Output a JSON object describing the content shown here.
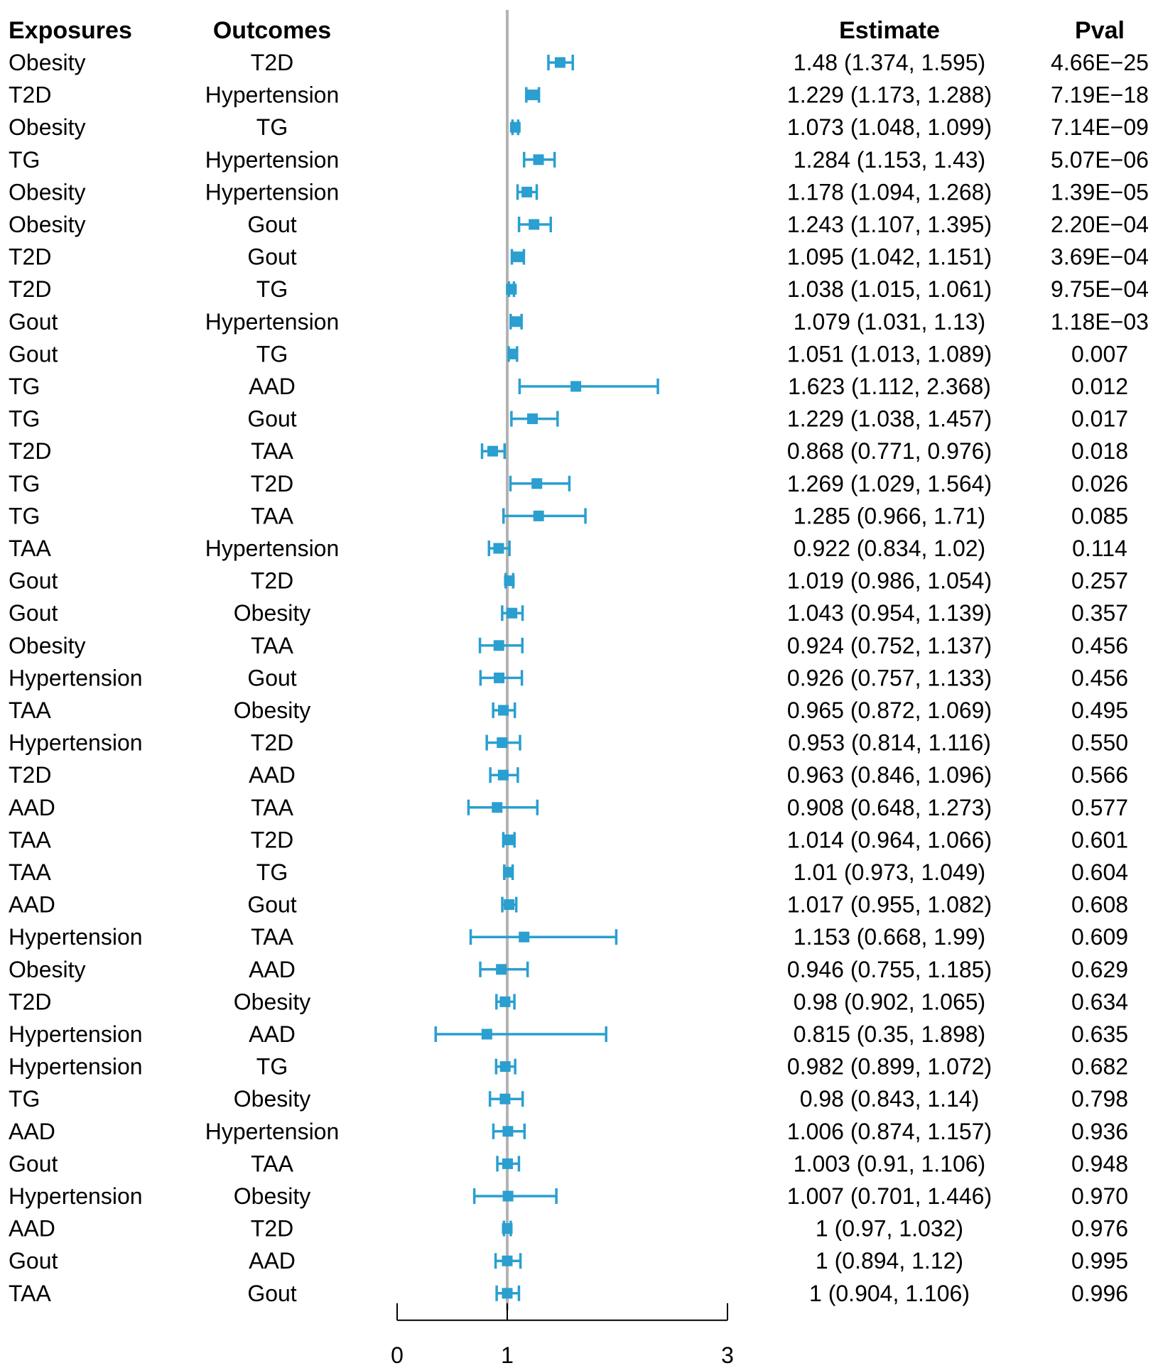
{
  "chart_data": {
    "type": "forest",
    "headers": {
      "exposures": "Exposures",
      "outcomes": "Outcomes",
      "estimate": "Estimate",
      "pval": "Pval"
    },
    "rows": [
      {
        "exposure": "Obesity",
        "outcome": "T2D",
        "or": 1.48,
        "lo": 1.374,
        "hi": 1.595,
        "estimate": "1.48 (1.374, 1.595)",
        "pval": "4.66E−25"
      },
      {
        "exposure": "T2D",
        "outcome": "Hypertension",
        "or": 1.229,
        "lo": 1.173,
        "hi": 1.288,
        "estimate": "1.229 (1.173, 1.288)",
        "pval": "7.19E−18"
      },
      {
        "exposure": "Obesity",
        "outcome": "TG",
        "or": 1.073,
        "lo": 1.048,
        "hi": 1.099,
        "estimate": "1.073 (1.048, 1.099)",
        "pval": "7.14E−09"
      },
      {
        "exposure": "TG",
        "outcome": "Hypertension",
        "or": 1.284,
        "lo": 1.153,
        "hi": 1.43,
        "estimate": "1.284 (1.153, 1.43)",
        "pval": "5.07E−06"
      },
      {
        "exposure": "Obesity",
        "outcome": "Hypertension",
        "or": 1.178,
        "lo": 1.094,
        "hi": 1.268,
        "estimate": "1.178 (1.094, 1.268)",
        "pval": "1.39E−05"
      },
      {
        "exposure": "Obesity",
        "outcome": "Gout",
        "or": 1.243,
        "lo": 1.107,
        "hi": 1.395,
        "estimate": "1.243 (1.107, 1.395)",
        "pval": "2.20E−04"
      },
      {
        "exposure": "T2D",
        "outcome": "Gout",
        "or": 1.095,
        "lo": 1.042,
        "hi": 1.151,
        "estimate": "1.095 (1.042, 1.151)",
        "pval": "3.69E−04"
      },
      {
        "exposure": "T2D",
        "outcome": "TG",
        "or": 1.038,
        "lo": 1.015,
        "hi": 1.061,
        "estimate": "1.038 (1.015, 1.061)",
        "pval": "9.75E−04"
      },
      {
        "exposure": "Gout",
        "outcome": "Hypertension",
        "or": 1.079,
        "lo": 1.031,
        "hi": 1.13,
        "estimate": "1.079 (1.031, 1.13)",
        "pval": "1.18E−03"
      },
      {
        "exposure": "Gout",
        "outcome": "TG",
        "or": 1.051,
        "lo": 1.013,
        "hi": 1.089,
        "estimate": "1.051 (1.013, 1.089)",
        "pval": "0.007"
      },
      {
        "exposure": "TG",
        "outcome": "AAD",
        "or": 1.623,
        "lo": 1.112,
        "hi": 2.368,
        "estimate": "1.623 (1.112, 2.368)",
        "pval": "0.012"
      },
      {
        "exposure": "TG",
        "outcome": "Gout",
        "or": 1.229,
        "lo": 1.038,
        "hi": 1.457,
        "estimate": "1.229 (1.038, 1.457)",
        "pval": "0.017"
      },
      {
        "exposure": "T2D",
        "outcome": "TAA",
        "or": 0.868,
        "lo": 0.771,
        "hi": 0.976,
        "estimate": "0.868 (0.771, 0.976)",
        "pval": "0.018"
      },
      {
        "exposure": "TG",
        "outcome": "T2D",
        "or": 1.269,
        "lo": 1.029,
        "hi": 1.564,
        "estimate": "1.269 (1.029, 1.564)",
        "pval": "0.026"
      },
      {
        "exposure": "TG",
        "outcome": "TAA",
        "or": 1.285,
        "lo": 0.966,
        "hi": 1.71,
        "estimate": "1.285 (0.966, 1.71)",
        "pval": "0.085"
      },
      {
        "exposure": "TAA",
        "outcome": "Hypertension",
        "or": 0.922,
        "lo": 0.834,
        "hi": 1.02,
        "estimate": "0.922 (0.834, 1.02)",
        "pval": "0.114"
      },
      {
        "exposure": "Gout",
        "outcome": "T2D",
        "or": 1.019,
        "lo": 0.986,
        "hi": 1.054,
        "estimate": "1.019 (0.986, 1.054)",
        "pval": "0.257"
      },
      {
        "exposure": "Gout",
        "outcome": "Obesity",
        "or": 1.043,
        "lo": 0.954,
        "hi": 1.139,
        "estimate": "1.043 (0.954, 1.139)",
        "pval": "0.357"
      },
      {
        "exposure": "Obesity",
        "outcome": "TAA",
        "or": 0.924,
        "lo": 0.752,
        "hi": 1.137,
        "estimate": "0.924 (0.752, 1.137)",
        "pval": "0.456"
      },
      {
        "exposure": "Hypertension",
        "outcome": "Gout",
        "or": 0.926,
        "lo": 0.757,
        "hi": 1.133,
        "estimate": "0.926 (0.757, 1.133)",
        "pval": "0.456"
      },
      {
        "exposure": "TAA",
        "outcome": "Obesity",
        "or": 0.965,
        "lo": 0.872,
        "hi": 1.069,
        "estimate": "0.965 (0.872, 1.069)",
        "pval": "0.495"
      },
      {
        "exposure": "Hypertension",
        "outcome": "T2D",
        "or": 0.953,
        "lo": 0.814,
        "hi": 1.116,
        "estimate": "0.953 (0.814, 1.116)",
        "pval": "0.550"
      },
      {
        "exposure": "T2D",
        "outcome": "AAD",
        "or": 0.963,
        "lo": 0.846,
        "hi": 1.096,
        "estimate": "0.963 (0.846, 1.096)",
        "pval": "0.566"
      },
      {
        "exposure": "AAD",
        "outcome": "TAA",
        "or": 0.908,
        "lo": 0.648,
        "hi": 1.273,
        "estimate": "0.908 (0.648, 1.273)",
        "pval": "0.577"
      },
      {
        "exposure": "TAA",
        "outcome": "T2D",
        "or": 1.014,
        "lo": 0.964,
        "hi": 1.066,
        "estimate": "1.014 (0.964, 1.066)",
        "pval": "0.601"
      },
      {
        "exposure": "TAA",
        "outcome": "TG",
        "or": 1.01,
        "lo": 0.973,
        "hi": 1.049,
        "estimate": "1.01 (0.973, 1.049)",
        "pval": "0.604"
      },
      {
        "exposure": "AAD",
        "outcome": "Gout",
        "or": 1.017,
        "lo": 0.955,
        "hi": 1.082,
        "estimate": "1.017 (0.955, 1.082)",
        "pval": "0.608"
      },
      {
        "exposure": "Hypertension",
        "outcome": "TAA",
        "or": 1.153,
        "lo": 0.668,
        "hi": 1.99,
        "estimate": "1.153 (0.668, 1.99)",
        "pval": "0.609"
      },
      {
        "exposure": "Obesity",
        "outcome": "AAD",
        "or": 0.946,
        "lo": 0.755,
        "hi": 1.185,
        "estimate": "0.946 (0.755, 1.185)",
        "pval": "0.629"
      },
      {
        "exposure": "T2D",
        "outcome": "Obesity",
        "or": 0.98,
        "lo": 0.902,
        "hi": 1.065,
        "estimate": "0.98 (0.902, 1.065)",
        "pval": "0.634"
      },
      {
        "exposure": "Hypertension",
        "outcome": "AAD",
        "or": 0.815,
        "lo": 0.35,
        "hi": 1.898,
        "estimate": "0.815 (0.35, 1.898)",
        "pval": "0.635"
      },
      {
        "exposure": "Hypertension",
        "outcome": "TG",
        "or": 0.982,
        "lo": 0.899,
        "hi": 1.072,
        "estimate": "0.982 (0.899, 1.072)",
        "pval": "0.682"
      },
      {
        "exposure": "TG",
        "outcome": "Obesity",
        "or": 0.98,
        "lo": 0.843,
        "hi": 1.14,
        "estimate": "0.98 (0.843, 1.14)",
        "pval": "0.798"
      },
      {
        "exposure": "AAD",
        "outcome": "Hypertension",
        "or": 1.006,
        "lo": 0.874,
        "hi": 1.157,
        "estimate": "1.006 (0.874, 1.157)",
        "pval": "0.936"
      },
      {
        "exposure": "Gout",
        "outcome": "TAA",
        "or": 1.003,
        "lo": 0.91,
        "hi": 1.106,
        "estimate": "1.003 (0.91, 1.106)",
        "pval": "0.948"
      },
      {
        "exposure": "Hypertension",
        "outcome": "Obesity",
        "or": 1.007,
        "lo": 0.701,
        "hi": 1.446,
        "estimate": "1.007 (0.701, 1.446)",
        "pval": "0.970"
      },
      {
        "exposure": "AAD",
        "outcome": "T2D",
        "or": 1,
        "lo": 0.97,
        "hi": 1.032,
        "estimate": "1 (0.97, 1.032)",
        "pval": "0.976"
      },
      {
        "exposure": "Gout",
        "outcome": "AAD",
        "or": 1,
        "lo": 0.894,
        "hi": 1.12,
        "estimate": "1 (0.894, 1.12)",
        "pval": "0.995"
      },
      {
        "exposure": "TAA",
        "outcome": "Gout",
        "or": 1,
        "lo": 0.904,
        "hi": 1.106,
        "estimate": "1 (0.904, 1.106)",
        "pval": "0.996"
      }
    ],
    "x_axis": {
      "ticks": [
        0,
        1,
        3
      ],
      "tick_labels": [
        "0",
        "1",
        "3"
      ],
      "reference_line": 1
    },
    "colors": {
      "marker": "#2a9fd0",
      "reference": "#b3b3b3",
      "axis": "#000000"
    }
  }
}
